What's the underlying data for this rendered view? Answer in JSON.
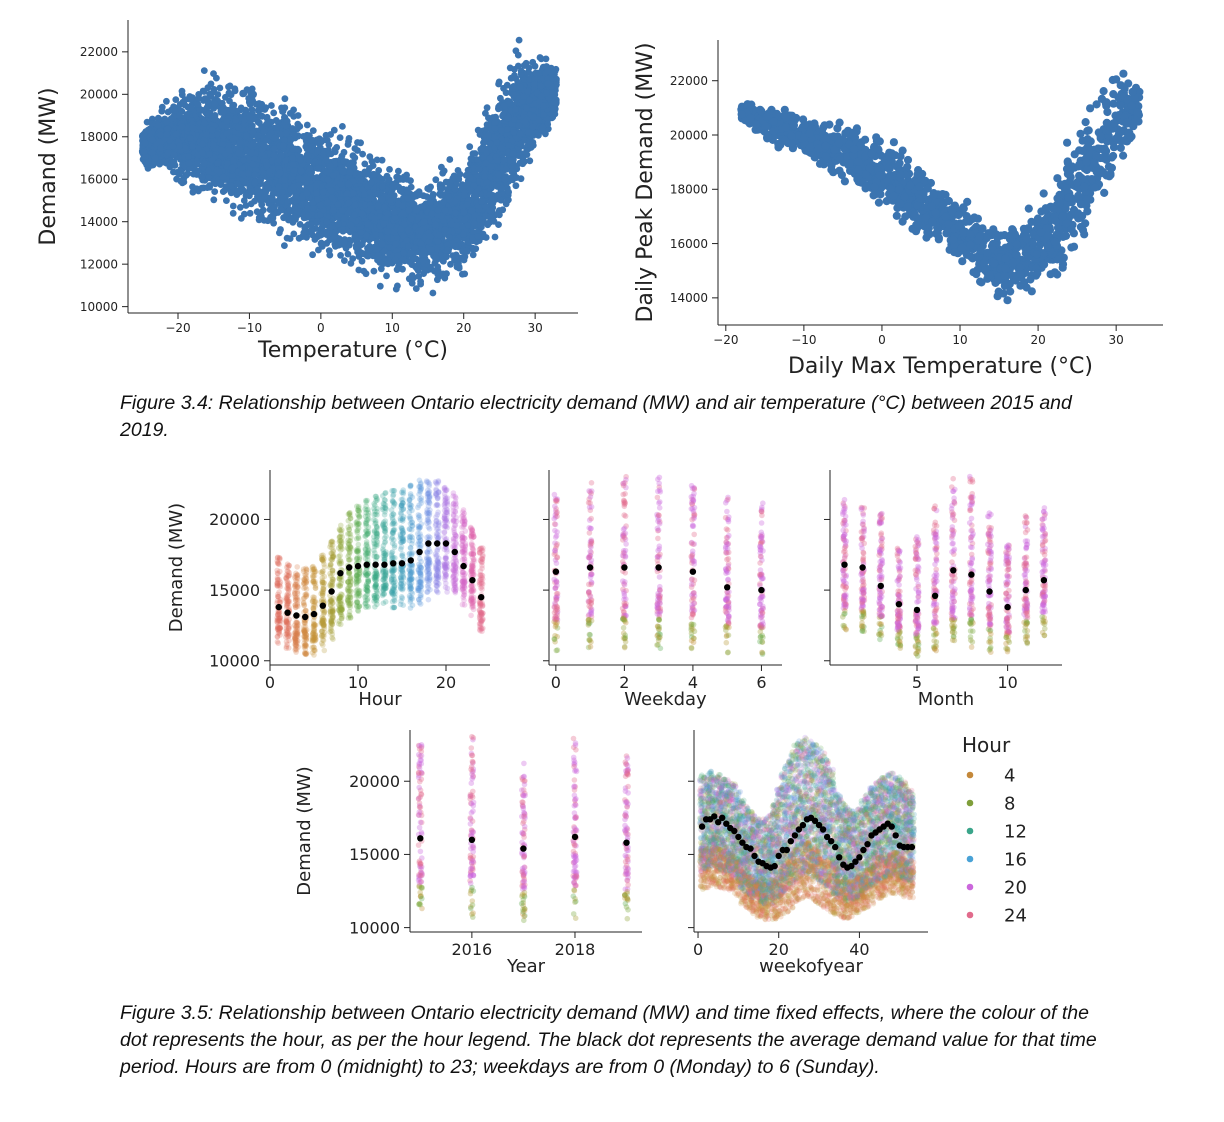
{
  "captions": {
    "fig34": "Figure 3.4: Relationship between Ontario electricity demand (MW) and air temperature (°C) between 2015 and 2019.",
    "fig35": "Figure 3.5: Relationship between Ontario electricity demand (MW) and time fixed effects, where the colour of the dot represents the hour, as per the hour legend. The black dot represents the average demand value for that time period. Hours are from 0 (midnight) to 23; weekdays are from 0 (Monday) to 6 (Sunday)."
  },
  "legend": {
    "title": "Hour",
    "entries": [
      {
        "label": "4",
        "color": "#c4883a"
      },
      {
        "label": "8",
        "color": "#7f9e3a"
      },
      {
        "label": "12",
        "color": "#3aa58a"
      },
      {
        "label": "16",
        "color": "#49a2d6"
      },
      {
        "label": "20",
        "color": "#cb67dc"
      },
      {
        "label": "24",
        "color": "#e16b8c"
      }
    ]
  },
  "chart_data": [
    {
      "id": "temp",
      "type": "scatter",
      "xlabel": "Temperature (°C)",
      "ylabel": "Demand (MW)",
      "xlim": [
        -27,
        36
      ],
      "ylim": [
        9700,
        23500
      ],
      "xticks": [
        -20,
        -10,
        0,
        10,
        20,
        30
      ],
      "yticks": [
        10000,
        12000,
        14000,
        16000,
        18000,
        20000,
        22000
      ],
      "color": "#3b74b0",
      "envelope": {
        "x": [
          -25,
          -20,
          -15,
          -10,
          -5,
          0,
          5,
          10,
          15,
          20,
          25,
          28,
          30,
          33
        ],
        "low": [
          16500,
          15300,
          14000,
          13200,
          12600,
          11900,
          11300,
          10400,
          10400,
          10800,
          13000,
          15000,
          16500,
          18500
        ],
        "high": [
          18600,
          20500,
          21500,
          21100,
          20300,
          19100,
          18300,
          17200,
          16500,
          17800,
          21400,
          23200,
          22400,
          21800
        ]
      }
    },
    {
      "id": "dailymax",
      "type": "scatter",
      "xlabel": "Daily Max Temperature (°C)",
      "ylabel": "Daily Peak Demand (MW)",
      "xlim": [
        -21,
        36
      ],
      "ylim": [
        13000,
        23500
      ],
      "xticks": [
        -20,
        -10,
        0,
        10,
        20,
        30
      ],
      "yticks": [
        14000,
        16000,
        18000,
        20000,
        22000
      ],
      "color": "#3b74b0",
      "envelope": {
        "x": [
          -18,
          -15,
          -10,
          -5,
          0,
          5,
          10,
          15,
          20,
          25,
          28,
          30,
          33
        ],
        "low": [
          20500,
          19600,
          18800,
          18100,
          17000,
          16000,
          14800,
          13700,
          13800,
          14800,
          16500,
          18200,
          20000
        ],
        "high": [
          21300,
          21300,
          21000,
          20700,
          20300,
          19000,
          18000,
          17000,
          17900,
          21000,
          22500,
          23100,
          22000
        ]
      }
    },
    {
      "id": "hour",
      "type": "strip",
      "xlabel": "Hour",
      "ylabel": "Demand (MW)",
      "xlim": [
        0,
        25
      ],
      "ylim": [
        9700,
        23500
      ],
      "xticks": [
        0,
        10,
        20
      ],
      "yticks": [
        10000,
        15000,
        20000
      ],
      "x": [
        1,
        2,
        3,
        4,
        5,
        6,
        7,
        8,
        9,
        10,
        11,
        12,
        13,
        14,
        15,
        16,
        17,
        18,
        19,
        20,
        21,
        22,
        23,
        24
      ],
      "min": [
        11200,
        10700,
        10500,
        10400,
        10400,
        10700,
        11400,
        12300,
        13000,
        13500,
        13700,
        13700,
        13700,
        13700,
        13700,
        13700,
        13900,
        14300,
        14700,
        14800,
        14500,
        13900,
        13000,
        12000
      ],
      "max": [
        17500,
        17000,
        16700,
        16600,
        16800,
        17500,
        18500,
        19600,
        20500,
        21000,
        21400,
        21700,
        22000,
        22200,
        22400,
        22700,
        22800,
        22900,
        22800,
        22500,
        21900,
        20800,
        19500,
        18000
      ],
      "mean": [
        13800,
        13400,
        13200,
        13100,
        13300,
        13900,
        14900,
        16200,
        16600,
        16700,
        16800,
        16800,
        16800,
        16900,
        16900,
        17100,
        17700,
        18300,
        18300,
        18300,
        17700,
        16700,
        15700,
        14500
      ]
    },
    {
      "id": "weekday",
      "type": "strip",
      "xlabel": "Weekday",
      "ylim": [
        9700,
        23500
      ],
      "xlim": [
        -0.2,
        6.6
      ],
      "xticks": [
        0,
        2,
        4,
        6
      ],
      "yticks": [
        10000,
        15000,
        20000
      ],
      "x": [
        0,
        1,
        2,
        3,
        4,
        5,
        6
      ],
      "min": [
        10700,
        10800,
        10900,
        10800,
        10800,
        10500,
        10400
      ],
      "max": [
        22200,
        22700,
        23200,
        23000,
        22400,
        21800,
        21200
      ],
      "mean": [
        16300,
        16600,
        16600,
        16600,
        16300,
        15200,
        15000
      ]
    },
    {
      "id": "month",
      "type": "strip",
      "xlabel": "Month",
      "ylim": [
        9700,
        23500
      ],
      "xlim": [
        0.2,
        13
      ],
      "xticks": [
        5,
        10
      ],
      "yticks": [
        10000,
        15000,
        20000
      ],
      "x": [
        1,
        2,
        3,
        4,
        5,
        6,
        7,
        8,
        9,
        10,
        11,
        12
      ],
      "min": [
        12000,
        12000,
        11500,
        10800,
        10300,
        10500,
        10800,
        10800,
        10500,
        10500,
        11200,
        11700
      ],
      "max": [
        21500,
        21000,
        20500,
        18300,
        18800,
        21200,
        23000,
        23200,
        20700,
        18300,
        20300,
        21000
      ],
      "mean": [
        16800,
        16600,
        15300,
        14000,
        13600,
        14600,
        16400,
        16100,
        14900,
        13800,
        15000,
        15700
      ]
    },
    {
      "id": "year",
      "type": "strip",
      "xlabel": "Year",
      "ylabel": "Demand (MW)",
      "ylim": [
        9700,
        23500
      ],
      "xlim": [
        2014.8,
        2019.3
      ],
      "xticks": [
        2016,
        2018
      ],
      "yticks": [
        10000,
        15000,
        20000
      ],
      "x": [
        2015,
        2016,
        2017,
        2018,
        2019
      ],
      "min": [
        10800,
        10600,
        10400,
        10600,
        10500
      ],
      "max": [
        22500,
        23200,
        21600,
        23000,
        21800
      ],
      "mean": [
        16100,
        16000,
        15400,
        16200,
        15800
      ]
    },
    {
      "id": "week",
      "type": "strip-dense",
      "xlabel": "weekofyear",
      "ylim": [
        9700,
        23500
      ],
      "xlim": [
        -1,
        57
      ],
      "xticks": [
        0,
        20,
        40
      ],
      "yticks": [
        10000,
        15000,
        20000
      ],
      "x": [
        1,
        2,
        3,
        4,
        5,
        6,
        7,
        8,
        9,
        10,
        11,
        12,
        13,
        14,
        15,
        16,
        17,
        18,
        19,
        20,
        21,
        22,
        23,
        24,
        25,
        26,
        27,
        28,
        29,
        30,
        31,
        32,
        33,
        34,
        35,
        36,
        37,
        38,
        39,
        40,
        41,
        42,
        43,
        44,
        45,
        46,
        47,
        48,
        49,
        50,
        51,
        52,
        53
      ],
      "mean": [
        16900,
        17400,
        17400,
        17600,
        17200,
        17500,
        17100,
        16800,
        16600,
        16200,
        15800,
        15500,
        15400,
        14900,
        14500,
        14400,
        14200,
        14100,
        14200,
        14900,
        15300,
        15300,
        15900,
        16300,
        16700,
        17000,
        17400,
        17500,
        17300,
        17000,
        16700,
        16200,
        15900,
        15500,
        14800,
        14300,
        14100,
        14200,
        14500,
        14800,
        15300,
        15700,
        16300,
        16500,
        16700,
        16900,
        17100,
        16900,
        16300,
        15600,
        15500,
        15500,
        15500
      ],
      "max": [
        20500,
        20600,
        20700,
        20600,
        20500,
        20400,
        20200,
        20000,
        19800,
        19300,
        18700,
        18300,
        18000,
        17700,
        17500,
        17500,
        17600,
        17800,
        18500,
        19600,
        20500,
        21300,
        22000,
        22500,
        22800,
        23000,
        23000,
        22800,
        22600,
        22300,
        22000,
        21500,
        20800,
        20000,
        19200,
        18500,
        18200,
        18000,
        18000,
        18300,
        18800,
        19200,
        19600,
        19900,
        20100,
        20300,
        20500,
        20700,
        20500,
        20300,
        20000,
        19700,
        19500
      ],
      "min": [
        12600,
        12700,
        12900,
        12900,
        12800,
        12700,
        12600,
        12500,
        12300,
        12000,
        11600,
        11300,
        11100,
        10900,
        10700,
        10600,
        10500,
        10500,
        10500,
        10700,
        10900,
        11000,
        11300,
        11600,
        11800,
        12000,
        12100,
        12000,
        11800,
        11600,
        11400,
        11200,
        11000,
        10900,
        10700,
        10600,
        10600,
        10700,
        10800,
        11000,
        11200,
        11400,
        11600,
        11800,
        12000,
        12100,
        12200,
        12300,
        12300,
        12200,
        12100,
        12000,
        12000
      ]
    }
  ]
}
